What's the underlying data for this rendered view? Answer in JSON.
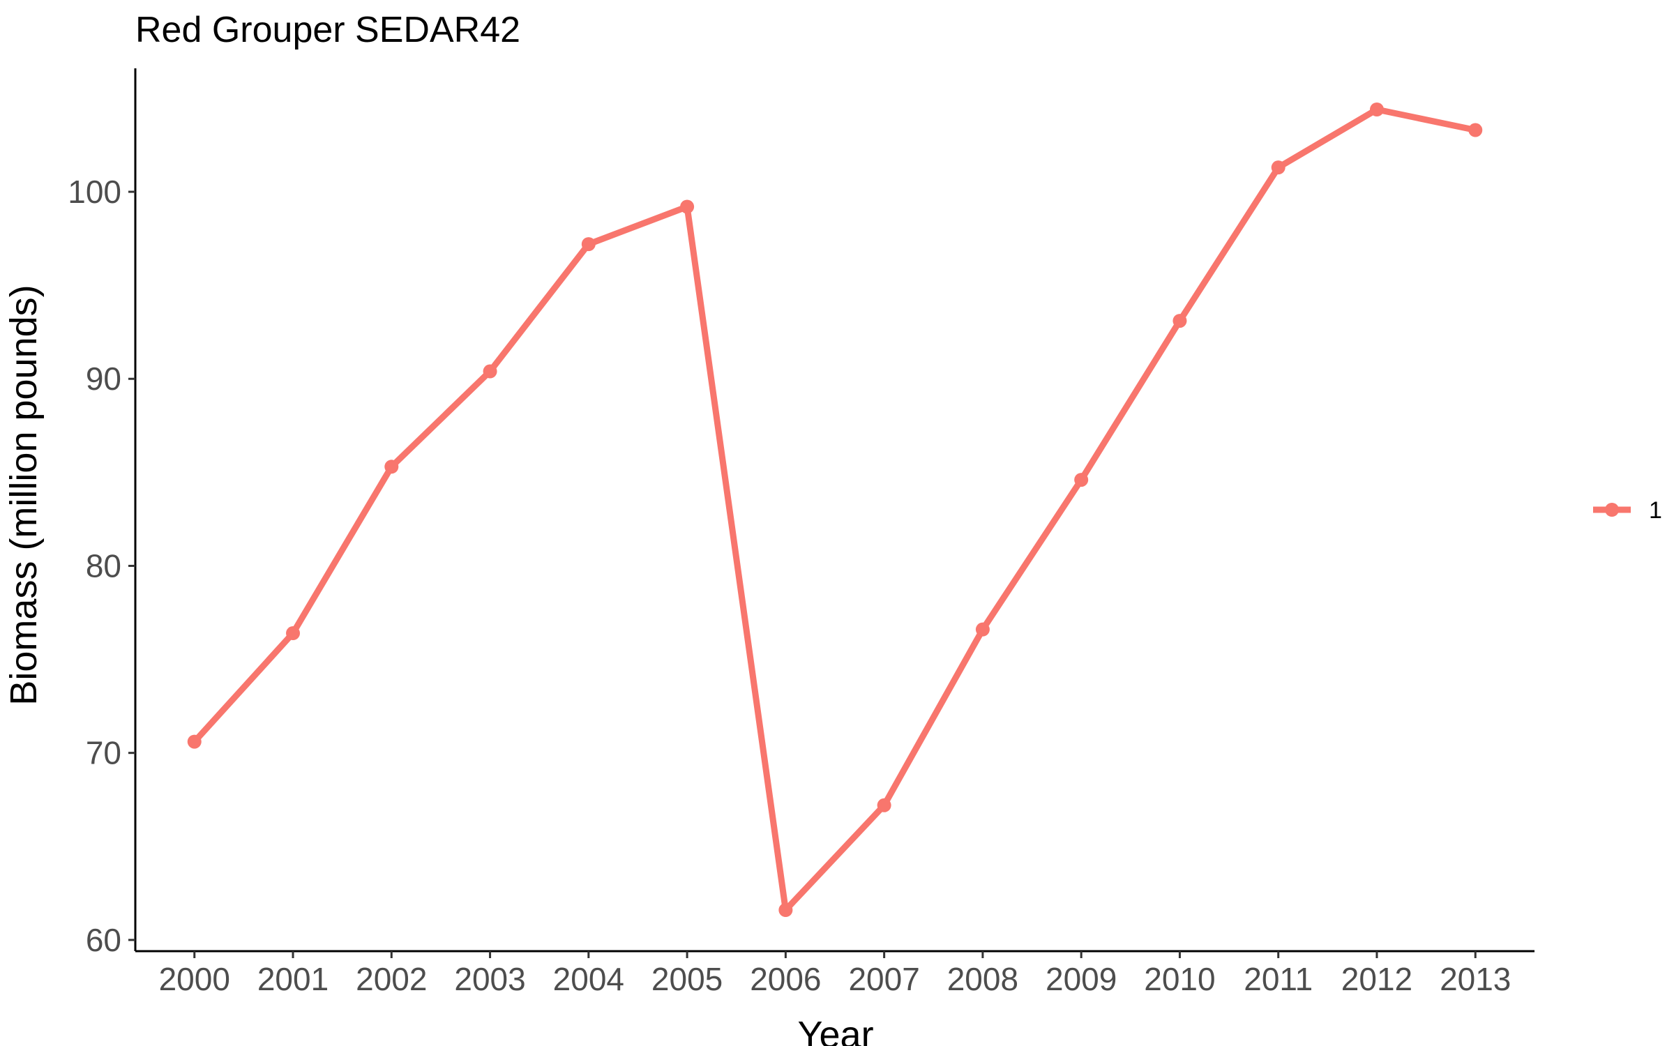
{
  "chart_data": {
    "type": "line",
    "title": "Red Grouper SEDAR42",
    "xlabel": "Year",
    "ylabel": "Biomass (million pounds)",
    "categories": [
      "2000",
      "2001",
      "2002",
      "2003",
      "2004",
      "2005",
      "2006",
      "2007",
      "2008",
      "2009",
      "2010",
      "2011",
      "2012",
      "2013"
    ],
    "series": [
      {
        "name": "1",
        "color": "#F8766D",
        "values": [
          70.6,
          76.4,
          85.3,
          90.4,
          97.2,
          99.2,
          61.6,
          67.2,
          76.6,
          84.6,
          93.1,
          101.3,
          104.4,
          103.3
        ]
      }
    ],
    "yticks": [
      60,
      70,
      80,
      90,
      100
    ],
    "ylim": [
      59.4,
      106.6
    ],
    "grid": false,
    "legend_position": "right"
  }
}
